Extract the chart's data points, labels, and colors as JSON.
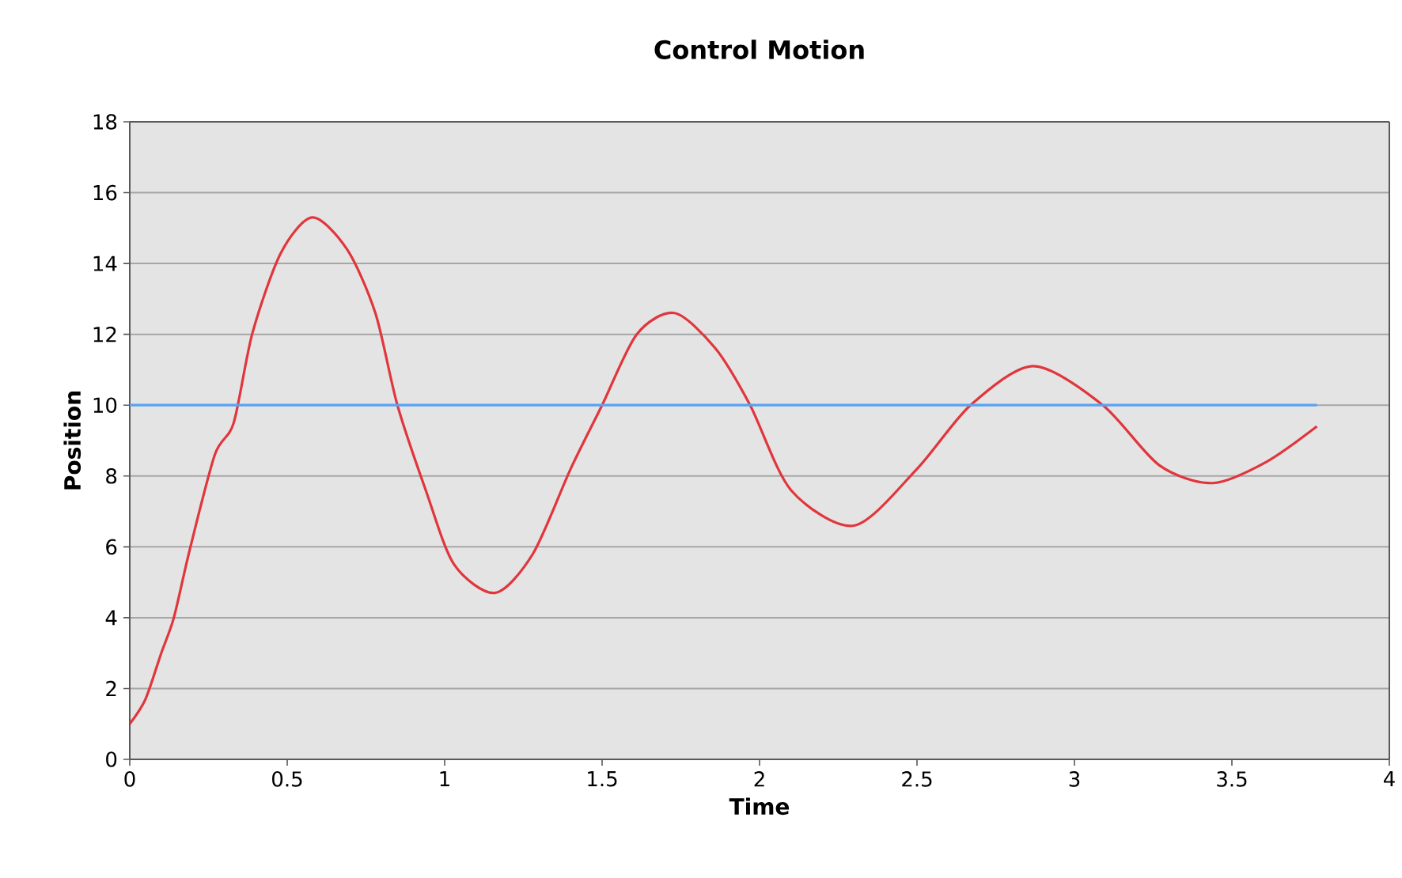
{
  "chart_data": {
    "type": "line",
    "title": "Control Motion",
    "xlabel": "Time",
    "ylabel": "Position",
    "xlim": [
      0,
      4
    ],
    "ylim": [
      0,
      18
    ],
    "xticks": [
      0,
      0.5,
      1,
      1.5,
      2,
      2.5,
      3,
      3.5,
      4
    ],
    "yticks": [
      0,
      2,
      4,
      6,
      8,
      10,
      12,
      14,
      16,
      18
    ],
    "grid": "y",
    "marker": "none",
    "line_style": "solid",
    "series": [
      {
        "color": "#e0363c",
        "x": [
          0,
          0.05,
          0.1,
          0.14,
          0.19,
          0.27,
          0.33,
          0.39,
          0.48,
          0.58,
          0.69,
          0.78,
          0.85,
          0.94,
          1.03,
          1.16,
          1.28,
          1.4,
          1.5,
          1.61,
          1.73,
          1.86,
          1.97,
          2.1,
          2.3,
          2.5,
          2.67,
          2.87,
          3.09,
          3.27,
          3.44,
          3.61,
          3.77
        ],
        "values": [
          1.0,
          1.7,
          3.0,
          4.0,
          5.9,
          8.6,
          9.5,
          12.05,
          14.3,
          15.3,
          14.4,
          12.6,
          10.0,
          7.6,
          5.5,
          4.7,
          5.8,
          8.2,
          10.0,
          12.0,
          12.6,
          11.6,
          10.0,
          7.6,
          6.6,
          8.2,
          10.0,
          11.1,
          10.0,
          8.3,
          7.8,
          8.4,
          9.4
        ]
      },
      {
        "color": "#5aa2f0",
        "x": [
          0,
          3.77
        ],
        "values": [
          10,
          10
        ]
      }
    ]
  }
}
